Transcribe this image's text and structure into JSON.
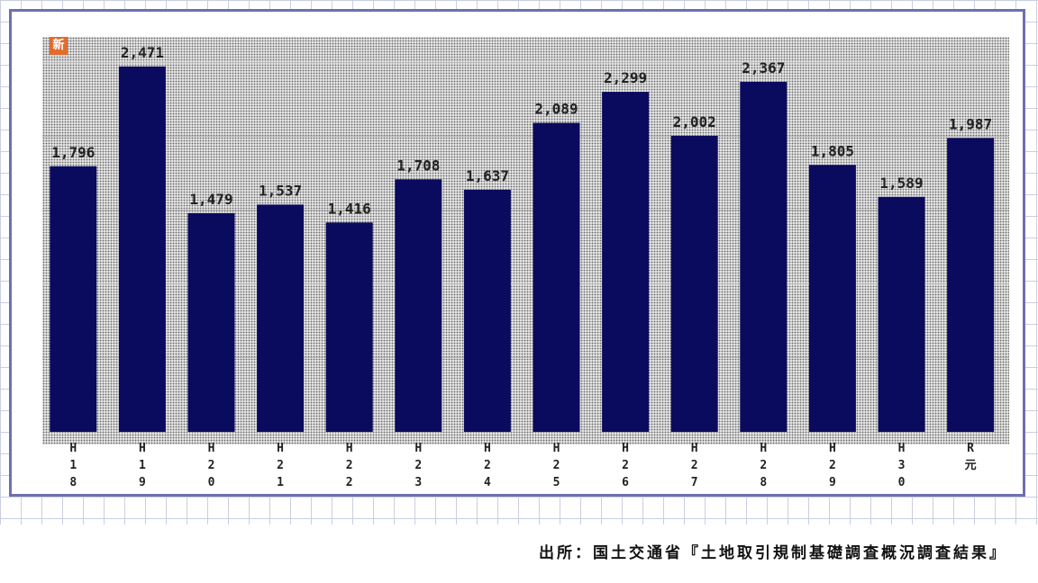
{
  "badge": "新",
  "source": "出所：国土交通省『土地取引規制基礎調査概況調査結果』",
  "colors": {
    "bar": "#0a0a5e",
    "frame": "#6f6fb0",
    "badge": "#e06c2e"
  },
  "chart_data": {
    "type": "bar",
    "categories": [
      "H18",
      "H19",
      "H20",
      "H21",
      "H22",
      "H23",
      "H24",
      "H25",
      "H26",
      "H27",
      "H28",
      "H29",
      "H30",
      "R元"
    ],
    "tick_labels": [
      [
        "H",
        "1",
        "8"
      ],
      [
        "H",
        "1",
        "9"
      ],
      [
        "H",
        "2",
        "0"
      ],
      [
        "H",
        "2",
        "1"
      ],
      [
        "H",
        "2",
        "2"
      ],
      [
        "H",
        "2",
        "3"
      ],
      [
        "H",
        "2",
        "4"
      ],
      [
        "H",
        "2",
        "5"
      ],
      [
        "H",
        "2",
        "6"
      ],
      [
        "H",
        "2",
        "7"
      ],
      [
        "H",
        "2",
        "8"
      ],
      [
        "H",
        "2",
        "9"
      ],
      [
        "H",
        "3",
        "0"
      ],
      [
        "R",
        "元"
      ]
    ],
    "values": [
      1796,
      2471,
      1479,
      1537,
      1416,
      1708,
      1637,
      2089,
      2299,
      2002,
      2367,
      1805,
      1589,
      1987
    ],
    "value_labels": [
      "1,796",
      "2,471",
      "1,479",
      "1,537",
      "1,416",
      "1,708",
      "1,637",
      "2,089",
      "2,299",
      "2,002",
      "2,367",
      "1,805",
      "1,589",
      "1,987"
    ],
    "title": "",
    "xlabel": "",
    "ylabel": "",
    "ylim": [
      0,
      2750
    ],
    "grid": true,
    "legend": "none"
  }
}
